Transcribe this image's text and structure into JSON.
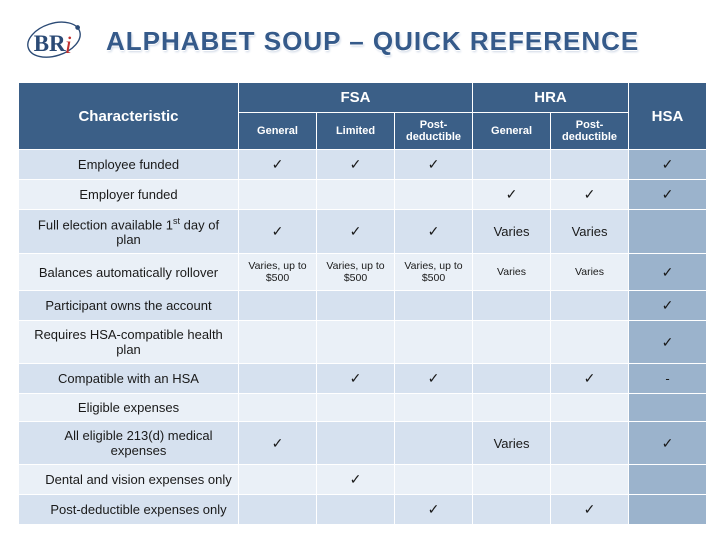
{
  "title": "ALPHABET SOUP – QUICK REFERENCE",
  "logo": {
    "top": "BR",
    "accent": "i",
    "accent_color": "#c03030",
    "ring_color": "#2b4a75"
  },
  "colors": {
    "header_bg": "#3b5f87",
    "header_fg": "#ffffff",
    "row_alt_a": "#d6e1ef",
    "row_alt_b": "#eaf0f7",
    "hsa_col": "#9bb3cc",
    "title_color": "#355a8a"
  },
  "columns": {
    "characteristic": "Characteristic",
    "groups": [
      {
        "label": "FSA",
        "subs": [
          "General",
          "Limited",
          "Post-deductible"
        ]
      },
      {
        "label": "HRA",
        "subs": [
          "General",
          "Post-deductible"
        ]
      }
    ],
    "hsa": "HSA"
  },
  "glyphs": {
    "check": "✓",
    "dash": "-"
  },
  "rows": [
    {
      "label": "Employee funded",
      "cells": [
        "✓",
        "✓",
        "✓",
        "",
        "",
        "✓"
      ]
    },
    {
      "label": "Employer funded",
      "cells": [
        "",
        "",
        "",
        "✓",
        "✓",
        "✓"
      ]
    },
    {
      "label_html": "Full election available 1<sup>st</sup> day of plan",
      "label": "Full election available 1st day of plan",
      "cells": [
        "✓",
        "✓",
        "✓",
        "Varies",
        "Varies",
        ""
      ]
    },
    {
      "label": "Balances automatically rollover",
      "cells": [
        "Varies, up to $500",
        "Varies, up to $500",
        "Varies, up to $500",
        "Varies",
        "Varies",
        "✓"
      ],
      "small": true
    },
    {
      "label": "Participant owns the account",
      "cells": [
        "",
        "",
        "",
        "",
        "",
        "✓"
      ]
    },
    {
      "label": "Requires HSA-compatible health plan",
      "cells": [
        "",
        "",
        "",
        "",
        "",
        "✓"
      ]
    },
    {
      "label": "Compatible with an HSA",
      "cells": [
        "",
        "✓",
        "✓",
        "",
        "✓",
        "-"
      ]
    },
    {
      "label": "Eligible expenses",
      "cells": [
        "",
        "",
        "",
        "",
        "",
        ""
      ],
      "section": true
    },
    {
      "label": "All eligible 213(d) medical expenses",
      "indent": true,
      "cells": [
        "✓",
        "",
        "",
        "Varies",
        "",
        "✓"
      ]
    },
    {
      "label": "Dental and vision expenses only",
      "indent": true,
      "cells": [
        "",
        "✓",
        "",
        "",
        "",
        ""
      ]
    },
    {
      "label": "Post-deductible expenses only",
      "indent": true,
      "cells": [
        "",
        "",
        "✓",
        "",
        "✓",
        ""
      ]
    }
  ]
}
